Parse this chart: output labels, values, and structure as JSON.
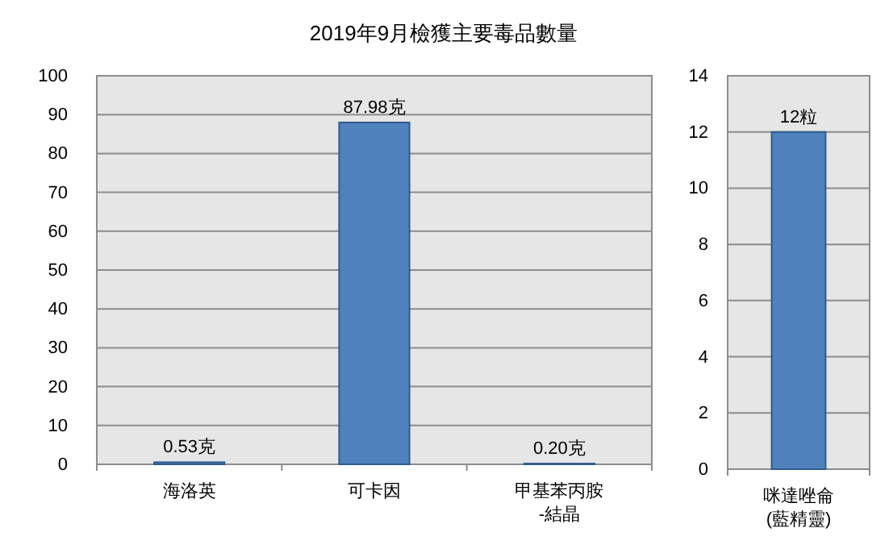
{
  "chart_data": [
    {
      "type": "bar",
      "title": "2019年9月檢獲主要毒品數量",
      "categories": [
        "海洛英",
        "可卡因",
        "甲基苯丙胺\n-結晶"
      ],
      "values": [
        0.53,
        87.98,
        0.2
      ],
      "value_labels": [
        "0.53克",
        "87.98克",
        "0.20克"
      ],
      "color": "#4f81bd",
      "ylim": [
        0,
        100
      ],
      "yticks": [
        0,
        10,
        20,
        30,
        40,
        50,
        60,
        70,
        80,
        90,
        100
      ],
      "grid": "y"
    },
    {
      "type": "bar",
      "categories": [
        "咪達唑侖\n(藍精靈)"
      ],
      "values": [
        12
      ],
      "value_labels": [
        "12粒"
      ],
      "color": "#4f81bd",
      "ylim": [
        0,
        14
      ],
      "yticks": [
        0,
        2,
        4,
        6,
        8,
        10,
        12,
        14
      ],
      "grid": "y"
    }
  ]
}
